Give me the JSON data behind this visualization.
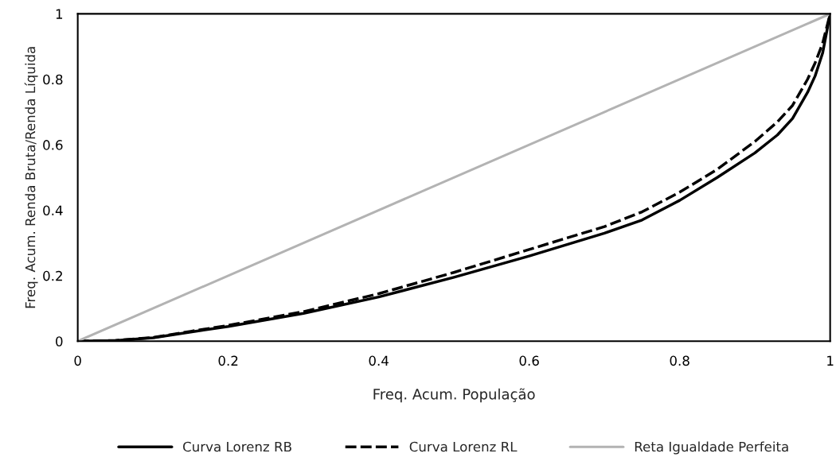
{
  "chart_data": {
    "type": "line",
    "xlabel": "Freq. Acum. População",
    "ylabel": "Freq. Acum. Renda Bruta/Renda Líquida",
    "xlim": [
      0,
      1
    ],
    "ylim": [
      0,
      1
    ],
    "xticks": [
      0,
      0.2,
      0.4,
      0.6,
      0.8,
      1
    ],
    "yticks": [
      0,
      0.2,
      0.4,
      0.6,
      0.8,
      1
    ],
    "grid": false,
    "legend": "bottom",
    "marker": "none",
    "series": [
      {
        "name": "Curva Lorenz RB",
        "color": "#000000",
        "line_style": "solid",
        "x": [
          0,
          0.05,
          0.1,
          0.15,
          0.2,
          0.3,
          0.4,
          0.5,
          0.6,
          0.7,
          0.75,
          0.8,
          0.85,
          0.9,
          0.93,
          0.95,
          0.97,
          0.98,
          0.99,
          1
        ],
        "values": [
          0,
          0.002,
          0.01,
          0.028,
          0.045,
          0.085,
          0.135,
          0.195,
          0.26,
          0.33,
          0.37,
          0.43,
          0.5,
          0.575,
          0.63,
          0.68,
          0.76,
          0.81,
          0.88,
          1
        ]
      },
      {
        "name": "Curva Lorenz RL",
        "color": "#000000",
        "line_style": "dashed",
        "x": [
          0,
          0.05,
          0.1,
          0.15,
          0.2,
          0.3,
          0.4,
          0.5,
          0.6,
          0.7,
          0.75,
          0.8,
          0.85,
          0.9,
          0.93,
          0.95,
          0.97,
          0.98,
          0.99,
          1
        ],
        "values": [
          0,
          0.002,
          0.011,
          0.03,
          0.048,
          0.09,
          0.145,
          0.21,
          0.28,
          0.35,
          0.395,
          0.455,
          0.525,
          0.61,
          0.67,
          0.72,
          0.8,
          0.85,
          0.91,
          1
        ]
      },
      {
        "name": "Reta Igualdade Perfeita",
        "color": "#b3b3b3",
        "line_style": "solid",
        "x": [
          0,
          1
        ],
        "values": [
          0,
          1
        ]
      }
    ]
  }
}
